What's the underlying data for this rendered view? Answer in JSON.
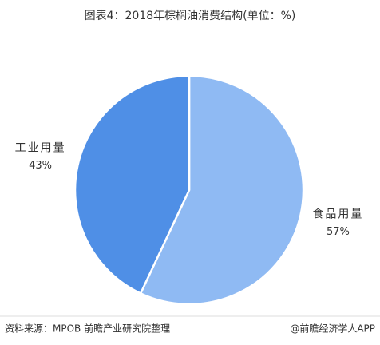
{
  "chart_data": {
    "type": "pie",
    "title": "图表4：2018年棕榈油消费结构(单位：%)",
    "categories": [
      "食品用量",
      "工业用量"
    ],
    "values": [
      57,
      43
    ],
    "value_labels": [
      "57%",
      "43%"
    ],
    "colors": [
      "#8fbaf3",
      "#4f8fe6"
    ]
  },
  "footer": {
    "source": "资料来源：MPOB 前瞻产业研究院整理",
    "credit": "@前瞻经济学人APP"
  }
}
